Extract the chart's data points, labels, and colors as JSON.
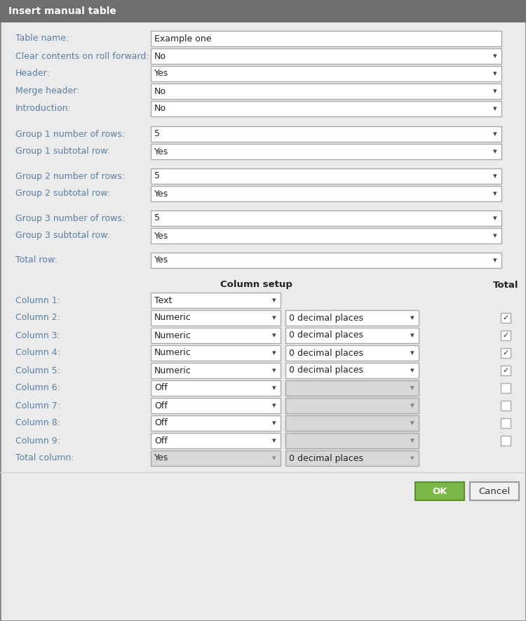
{
  "title": "Insert manual table",
  "title_bg": "#6e6e6e",
  "title_fg": "#ffffff",
  "dialog_bg": "#ebebeb",
  "border_color": "#999999",
  "label_color": "#5b7fa6",
  "input_bg_white": "#ffffff",
  "input_bg_gray": "#d8d8d8",
  "input_border": "#aaaaaa",
  "fields_top": [
    {
      "label": "Table name:",
      "value": "Example one",
      "type": "text"
    },
    {
      "label": "Clear contents on roll forward:",
      "value": "No",
      "type": "dropdown"
    },
    {
      "label": "Header:",
      "value": "Yes",
      "type": "dropdown"
    },
    {
      "label": "Merge header:",
      "value": "No",
      "type": "dropdown"
    },
    {
      "label": "Introduction:",
      "value": "No",
      "type": "dropdown"
    }
  ],
  "fields_groups": [
    {
      "label": "Group 1 number of rows:",
      "value": "5",
      "gap_before": false
    },
    {
      "label": "Group 1 subtotal row:",
      "value": "Yes",
      "gap_before": false
    },
    {
      "label": "Group 2 number of rows:",
      "value": "5",
      "gap_before": true
    },
    {
      "label": "Group 2 subtotal row:",
      "value": "Yes",
      "gap_before": false
    },
    {
      "label": "Group 3 number of rows:",
      "value": "5",
      "gap_before": true
    },
    {
      "label": "Group 3 subtotal row:",
      "value": "Yes",
      "gap_before": false
    },
    {
      "label": "Total row:",
      "value": "Yes",
      "gap_before": true
    }
  ],
  "column_setup_label": "Column setup",
  "total_label": "Total",
  "columns": [
    {
      "label": "Column 1:",
      "type": "Text",
      "decimal": null,
      "checked": null,
      "col1": true,
      "enabled": true
    },
    {
      "label": "Column 2:",
      "type": "Numeric",
      "decimal": "0 decimal places",
      "checked": true,
      "enabled": true
    },
    {
      "label": "Column 3:",
      "type": "Numeric",
      "decimal": "0 decimal places",
      "checked": true,
      "enabled": true
    },
    {
      "label": "Column 4:",
      "type": "Numeric",
      "decimal": "0 decimal places",
      "checked": true,
      "enabled": true
    },
    {
      "label": "Column 5:",
      "type": "Numeric",
      "decimal": "0 decimal places",
      "checked": true,
      "enabled": true
    },
    {
      "label": "Column 6:",
      "type": "Off",
      "decimal": "",
      "checked": false,
      "enabled": false
    },
    {
      "label": "Column 7:",
      "type": "Off",
      "decimal": "",
      "checked": false,
      "enabled": false
    },
    {
      "label": "Column 8:",
      "type": "Off",
      "decimal": "",
      "checked": false,
      "enabled": false
    },
    {
      "label": "Column 9:",
      "type": "Off",
      "decimal": "",
      "checked": false,
      "enabled": false
    },
    {
      "label": "Total column:",
      "type": "Yes",
      "decimal": "0 decimal places",
      "checked": null,
      "enabled": false,
      "total_col": true
    }
  ],
  "ok_label": "OK",
  "cancel_label": "Cancel",
  "ok_bg": "#7ab648",
  "ok_border": "#5a8f2a",
  "cancel_bg": "#f0f0f0",
  "cancel_border": "#999999",
  "fig_w": 7.5,
  "fig_h": 8.85,
  "dpi": 100
}
